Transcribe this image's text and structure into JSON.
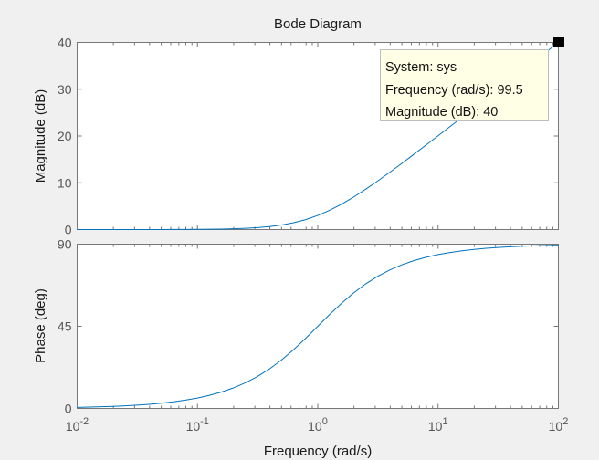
{
  "chart_data": {
    "type": "line",
    "title": "Bode Diagram",
    "xlabel": "Frequency  (rad/s)",
    "xscale": "log",
    "xlim": [
      0.01,
      100
    ],
    "xticks": [
      {
        "base": "10",
        "exp": "-2",
        "value": 0.01
      },
      {
        "base": "10",
        "exp": "-1",
        "value": 0.1
      },
      {
        "base": "10",
        "exp": "0",
        "value": 1
      },
      {
        "base": "10",
        "exp": "1",
        "value": 10
      },
      {
        "base": "10",
        "exp": "2",
        "value": 100
      }
    ],
    "line_color": "#0072bd",
    "grid": false,
    "frequency": [
      0.01,
      0.01259,
      0.01585,
      0.01995,
      0.02512,
      0.03162,
      0.03981,
      0.05012,
      0.0631,
      0.07943,
      0.1,
      0.1259,
      0.1585,
      0.1995,
      0.2512,
      0.3162,
      0.3981,
      0.5012,
      0.631,
      0.7943,
      1,
      1.259,
      1.585,
      1.995,
      2.512,
      3.162,
      3.981,
      5.012,
      6.31,
      7.943,
      10,
      12.59,
      15.85,
      19.95,
      25.12,
      31.62,
      39.81,
      50.12,
      63.1,
      79.43,
      100
    ],
    "subplots": [
      {
        "ylabel": "Magnitude (dB)",
        "ylim": [
          0,
          40
        ],
        "yticks": [
          "0",
          "10",
          "20",
          "30",
          "40"
        ],
        "ytick_values": [
          0,
          10,
          20,
          30,
          40
        ],
        "series": [
          {
            "name": "sys",
            "values": [
              0.0004,
              0.0007,
              0.0011,
              0.0017,
              0.0027,
              0.0043,
              0.0069,
              0.0109,
              0.0173,
              0.0273,
              0.0432,
              0.0683,
              0.1077,
              0.1695,
              0.2657,
              0.4139,
              0.6391,
              0.9733,
              1.4554,
              2.1246,
              3.0103,
              4.1246,
              5.4554,
              6.9733,
              8.6391,
              10.4139,
              12.2657,
              14.1695,
              16.1077,
              18.0683,
              20.0432,
              22.0273,
              24.0173,
              26.0109,
              28.0069,
              30.0043,
              32.0027,
              34.0017,
              36.0011,
              38.0007,
              40.0004
            ]
          }
        ]
      },
      {
        "ylabel": "Phase (deg)",
        "ylim": [
          0,
          90
        ],
        "yticks": [
          "0",
          "45",
          "90"
        ],
        "ytick_values": [
          0,
          45,
          90
        ],
        "series": [
          {
            "name": "sys",
            "values": [
              0.57,
              0.72,
              0.91,
              1.14,
              1.44,
              1.81,
              2.28,
              2.87,
              3.61,
              4.54,
              5.71,
              7.18,
              9.01,
              11.28,
              14.1,
              17.55,
              21.7,
              26.62,
              32.25,
              38.46,
              45,
              51.54,
              57.75,
              63.38,
              68.3,
              72.45,
              75.9,
              78.72,
              80.99,
              82.82,
              84.29,
              85.46,
              86.39,
              87.13,
              87.72,
              88.19,
              88.56,
              88.86,
              89.09,
              89.28,
              89.43
            ]
          }
        ]
      }
    ],
    "datatip": {
      "system": "System: sys",
      "frequency": "Frequency (rad/s): 99.5",
      "magnitude": "Magnitude (dB): 40"
    }
  }
}
